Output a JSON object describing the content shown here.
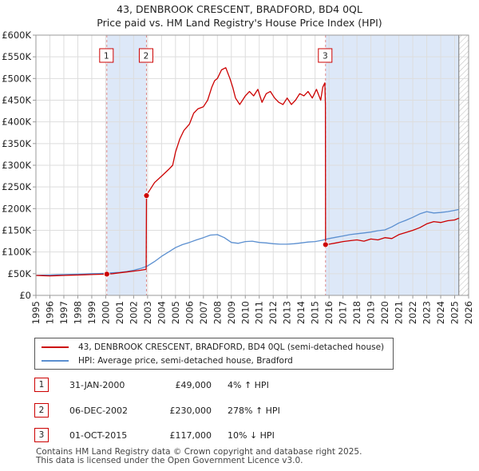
{
  "title_line1": "43, DENBROOK CRESCENT, BRADFORD, BD4 0QL",
  "title_line2": "Price paid vs. HM Land Registry's House Price Index (HPI)",
  "colors": {
    "property": "#cc0000",
    "hpi": "#5b8fd0",
    "shade": "#dde8f8",
    "grid": "#dddddd",
    "marker_dash": "#dd8888",
    "future_hatch": "#bbbbbb"
  },
  "chart_data": {
    "type": "line",
    "title": "Price paid vs. HM Land Registry's House Price Index (HPI)",
    "xlabel": "",
    "ylabel": "",
    "xlim": [
      1995,
      2026
    ],
    "ylim": [
      0,
      600000
    ],
    "x_ticks": [
      "1995",
      "1996",
      "1997",
      "1998",
      "1999",
      "2000",
      "2001",
      "2002",
      "2003",
      "2004",
      "2005",
      "2006",
      "2007",
      "2008",
      "2009",
      "2010",
      "2011",
      "2012",
      "2013",
      "2014",
      "2015",
      "2016",
      "2017",
      "2018",
      "2019",
      "2020",
      "2021",
      "2022",
      "2023",
      "2024",
      "2025",
      "2026"
    ],
    "y_ticks": [
      {
        "value": 0,
        "label": "£0"
      },
      {
        "value": 50000,
        "label": "£50K"
      },
      {
        "value": 100000,
        "label": "£100K"
      },
      {
        "value": 150000,
        "label": "£150K"
      },
      {
        "value": 200000,
        "label": "£200K"
      },
      {
        "value": 250000,
        "label": "£250K"
      },
      {
        "value": 300000,
        "label": "£300K"
      },
      {
        "value": 350000,
        "label": "£350K"
      },
      {
        "value": 400000,
        "label": "£400K"
      },
      {
        "value": 450000,
        "label": "£450K"
      },
      {
        "value": 500000,
        "label": "£500K"
      },
      {
        "value": 550000,
        "label": "£550K"
      },
      {
        "value": 600000,
        "label": "£600K"
      }
    ],
    "grid": true,
    "shaded_ranges": [
      [
        2000.08,
        2002.92
      ],
      [
        2015.75,
        2025.3
      ]
    ],
    "forecast_from": 2025.3,
    "series": [
      {
        "name": "43, DENBROOK CRESCENT, BRADFORD, BD4 0QL (semi-detached house)",
        "color": "#cc0000",
        "x": [
          1995,
          1995.5,
          1996,
          1996.5,
          1997,
          1997.5,
          1998,
          1998.5,
          1999,
          1999.5,
          2000.08,
          2000.5,
          2001,
          2001.5,
          2002,
          2002.5,
          2002.9,
          2002.92,
          2003,
          2003.5,
          2004,
          2004.5,
          2004.8,
          2005,
          2005.3,
          2005.6,
          2006,
          2006.3,
          2006.6,
          2007,
          2007.3,
          2007.6,
          2007.8,
          2008,
          2008.3,
          2008.6,
          2008.9,
          2009.1,
          2009.3,
          2009.6,
          2010,
          2010.3,
          2010.6,
          2010.9,
          2011.2,
          2011.5,
          2011.8,
          2012.1,
          2012.4,
          2012.7,
          2013,
          2013.3,
          2013.6,
          2013.9,
          2014.2,
          2014.5,
          2014.8,
          2015.1,
          2015.4,
          2015.55,
          2015.7,
          2015.74,
          2015.75,
          2016,
          2016.5,
          2017,
          2017.5,
          2018,
          2018.5,
          2019,
          2019.5,
          2020,
          2020.5,
          2021,
          2021.5,
          2022,
          2022.5,
          2023,
          2023.5,
          2024,
          2024.5,
          2025,
          2025.3
        ],
        "values": [
          46000,
          45500,
          45000,
          45500,
          46000,
          46500,
          47000,
          47500,
          48000,
          48500,
          49000,
          50000,
          52000,
          54000,
          56000,
          58000,
          60000,
          230000,
          235000,
          260000,
          275000,
          290000,
          300000,
          330000,
          360000,
          380000,
          395000,
          420000,
          430000,
          435000,
          450000,
          480000,
          495000,
          500000,
          520000,
          525000,
          500000,
          480000,
          455000,
          440000,
          460000,
          470000,
          460000,
          475000,
          445000,
          465000,
          470000,
          455000,
          445000,
          440000,
          455000,
          440000,
          450000,
          465000,
          460000,
          470000,
          455000,
          475000,
          450000,
          480000,
          490000,
          440000,
          117000,
          118000,
          121000,
          124000,
          126000,
          128000,
          125000,
          130000,
          128000,
          133000,
          131000,
          140000,
          145000,
          150000,
          156000,
          165000,
          170000,
          168000,
          172000,
          174000,
          178000
        ]
      },
      {
        "name": "HPI: Average price, semi-detached house, Bradford",
        "color": "#5b8fd0",
        "x": [
          1995,
          1995.5,
          1996,
          1996.5,
          1997,
          1997.5,
          1998,
          1998.5,
          1999,
          1999.5,
          2000,
          2000.5,
          2001,
          2001.5,
          2002,
          2002.5,
          2003,
          2003.5,
          2004,
          2004.5,
          2005,
          2005.5,
          2006,
          2006.5,
          2007,
          2007.5,
          2008,
          2008.5,
          2009,
          2009.5,
          2010,
          2010.5,
          2011,
          2011.5,
          2012,
          2012.5,
          2013,
          2013.5,
          2014,
          2014.5,
          2015,
          2015.5,
          2016,
          2016.5,
          2017,
          2017.5,
          2018,
          2018.5,
          2019,
          2019.5,
          2020,
          2020.5,
          2021,
          2021.5,
          2022,
          2022.5,
          2023,
          2023.5,
          2024,
          2024.5,
          2025,
          2025.3
        ],
        "values": [
          46000,
          46500,
          47000,
          47500,
          48000,
          48500,
          49000,
          49500,
          50000,
          50500,
          51000,
          52000,
          53000,
          55000,
          58000,
          62000,
          68000,
          78000,
          90000,
          100000,
          110000,
          117000,
          122000,
          128000,
          133000,
          139000,
          140000,
          133000,
          122000,
          120000,
          124000,
          125000,
          122000,
          121000,
          119000,
          118000,
          118000,
          119000,
          121000,
          123000,
          124000,
          127000,
          131000,
          134000,
          137000,
          140000,
          142000,
          144000,
          146000,
          149000,
          151000,
          158000,
          167000,
          173000,
          180000,
          188000,
          193000,
          190000,
          191000,
          193000,
          196000,
          198000
        ]
      }
    ],
    "sales": [
      {
        "id": "1",
        "x": 2000.08,
        "value": 49000
      },
      {
        "id": "2",
        "x": 2002.92,
        "value": 230000
      },
      {
        "id": "3",
        "x": 2015.75,
        "value": 117000
      }
    ]
  },
  "legend": {
    "property_label": "43, DENBROOK CRESCENT, BRADFORD, BD4 0QL (semi-detached house)",
    "hpi_label": "HPI: Average price, semi-detached house, Bradford"
  },
  "transactions": [
    {
      "id": "1",
      "date": "31-JAN-2000",
      "price": "£49,000",
      "hpi": "4% ↑ HPI"
    },
    {
      "id": "2",
      "date": "06-DEC-2002",
      "price": "£230,000",
      "hpi": "278% ↑ HPI"
    },
    {
      "id": "3",
      "date": "01-OCT-2015",
      "price": "£117,000",
      "hpi": "10% ↓ HPI"
    }
  ],
  "footer_line1": "Contains HM Land Registry data © Crown copyright and database right 2025.",
  "footer_line2": "This data is licensed under the Open Government Licence v3.0."
}
